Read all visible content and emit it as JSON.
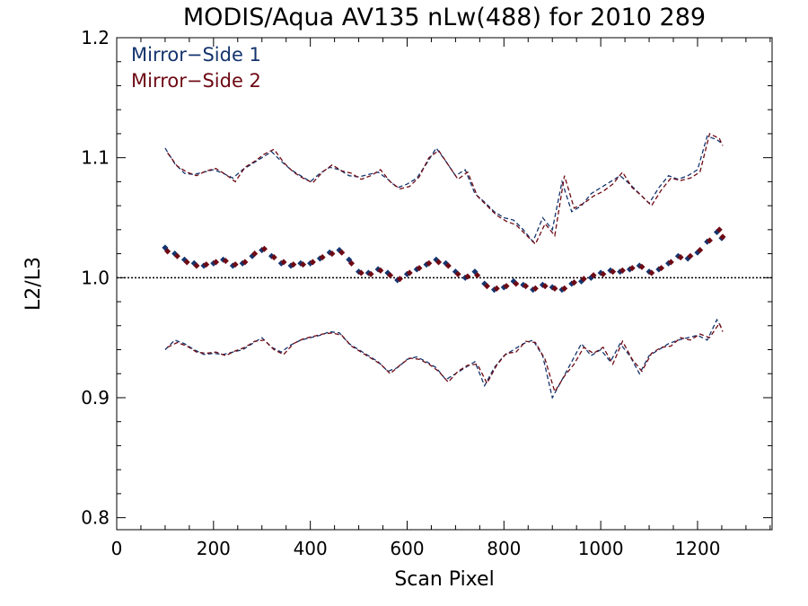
{
  "chart_data": {
    "type": "scatter",
    "title": "MODIS/Aqua AV135 nLw(488) for 2010 289",
    "xlabel": "Scan Pixel",
    "ylabel": "L2/L3",
    "xlim": [
      0,
      1354
    ],
    "ylim": [
      0.79,
      1.2
    ],
    "xticks": [
      0,
      200,
      400,
      600,
      800,
      1000,
      1200
    ],
    "yticks": [
      0.8,
      0.9,
      1.0,
      1.1,
      1.2
    ],
    "xtick_labels": [
      "0",
      "200",
      "400",
      "600",
      "800",
      "1000",
      "1200"
    ],
    "ytick_labels": [
      "0.8",
      "0.9",
      "1.0",
      "1.1",
      "1.2"
    ],
    "reference_line": 1.0,
    "legend_placement": "top-left",
    "grid": false,
    "series": [
      {
        "name": "Mirror−Side 1",
        "color": "#14346e",
        "x": [
          100,
          120,
          140,
          160,
          180,
          200,
          220,
          240,
          260,
          280,
          300,
          320,
          340,
          360,
          380,
          400,
          420,
          440,
          460,
          480,
          500,
          520,
          540,
          560,
          580,
          600,
          620,
          640,
          660,
          680,
          700,
          720,
          740,
          760,
          780,
          800,
          820,
          840,
          860,
          880,
          900,
          920,
          940,
          960,
          980,
          1000,
          1020,
          1040,
          1060,
          1080,
          1100,
          1120,
          1140,
          1160,
          1180,
          1200,
          1220,
          1240,
          1250
        ],
        "y": [
          1.025,
          1.02,
          1.015,
          1.012,
          1.01,
          1.012,
          1.015,
          1.01,
          1.012,
          1.018,
          1.023,
          1.018,
          1.012,
          1.01,
          1.012,
          1.012,
          1.016,
          1.021,
          1.023,
          1.015,
          1.005,
          1.004,
          1.007,
          1.004,
          0.998,
          1.003,
          1.007,
          1.011,
          1.015,
          1.012,
          1.005,
          1.0,
          1.005,
          0.995,
          0.99,
          0.992,
          0.997,
          0.994,
          0.99,
          0.994,
          0.992,
          0.99,
          0.995,
          0.997,
          1.0,
          1.004,
          1.006,
          1.005,
          1.007,
          1.01,
          1.005,
          1.007,
          1.012,
          1.018,
          1.016,
          1.021,
          1.03,
          1.038,
          1.033
        ]
      },
      {
        "name": "Mirror−Side 2",
        "color": "#6e0a14",
        "x": [
          105,
          125,
          145,
          165,
          185,
          205,
          225,
          245,
          265,
          285,
          305,
          325,
          345,
          365,
          385,
          405,
          425,
          445,
          465,
          485,
          505,
          525,
          545,
          565,
          585,
          605,
          625,
          645,
          665,
          685,
          705,
          725,
          745,
          765,
          785,
          805,
          825,
          845,
          865,
          885,
          905,
          925,
          945,
          965,
          985,
          1005,
          1025,
          1045,
          1065,
          1085,
          1105,
          1125,
          1145,
          1165,
          1185,
          1205,
          1225,
          1245,
          1252
        ],
        "y": [
          1.022,
          1.018,
          1.013,
          1.01,
          1.011,
          1.013,
          1.014,
          1.011,
          1.013,
          1.02,
          1.024,
          1.017,
          1.013,
          1.011,
          1.011,
          1.013,
          1.017,
          1.02,
          1.021,
          1.012,
          1.004,
          1.003,
          1.006,
          1.002,
          0.999,
          1.004,
          1.008,
          1.012,
          1.013,
          1.01,
          1.003,
          1.001,
          1.002,
          0.993,
          0.991,
          0.993,
          0.995,
          0.993,
          0.991,
          0.993,
          0.991,
          0.991,
          0.996,
          0.999,
          1.002,
          1.003,
          1.005,
          1.006,
          1.008,
          1.009,
          1.004,
          1.008,
          1.013,
          1.017,
          1.018,
          1.023,
          1.031,
          1.04,
          1.034
        ]
      },
      {
        "name": "",
        "color": "#14346e",
        "x": [
          100,
          120,
          140,
          160,
          180,
          200,
          220,
          240,
          260,
          280,
          300,
          320,
          340,
          360,
          380,
          400,
          420,
          440,
          460,
          480,
          500,
          520,
          540,
          560,
          580,
          600,
          620,
          640,
          660,
          680,
          700,
          720,
          740,
          760,
          780,
          800,
          820,
          840,
          860,
          880,
          900,
          920,
          940,
          960,
          980,
          1000,
          1020,
          1040,
          1060,
          1080,
          1100,
          1120,
          1140,
          1160,
          1180,
          1200,
          1220,
          1240,
          1250
        ],
        "y": [
          1.108,
          1.095,
          1.087,
          1.086,
          1.088,
          1.09,
          1.087,
          1.083,
          1.09,
          1.095,
          1.1,
          1.105,
          1.097,
          1.09,
          1.085,
          1.08,
          1.087,
          1.092,
          1.09,
          1.085,
          1.084,
          1.086,
          1.088,
          1.082,
          1.075,
          1.078,
          1.083,
          1.095,
          1.108,
          1.097,
          1.085,
          1.09,
          1.07,
          1.063,
          1.055,
          1.05,
          1.048,
          1.04,
          1.03,
          1.05,
          1.04,
          1.08,
          1.055,
          1.06,
          1.07,
          1.075,
          1.08,
          1.085,
          1.078,
          1.07,
          1.062,
          1.075,
          1.085,
          1.082,
          1.085,
          1.09,
          1.118,
          1.115,
          1.112
        ]
      },
      {
        "name": "",
        "color": "#6e0a14",
        "x": [
          105,
          125,
          145,
          165,
          185,
          205,
          225,
          245,
          265,
          285,
          305,
          325,
          345,
          365,
          385,
          405,
          425,
          445,
          465,
          485,
          505,
          525,
          545,
          565,
          585,
          605,
          625,
          645,
          665,
          685,
          705,
          725,
          745,
          765,
          785,
          805,
          825,
          845,
          865,
          885,
          905,
          925,
          945,
          965,
          985,
          1005,
          1025,
          1045,
          1065,
          1085,
          1105,
          1125,
          1145,
          1165,
          1185,
          1205,
          1225,
          1245,
          1252
        ],
        "y": [
          1.104,
          1.093,
          1.088,
          1.085,
          1.089,
          1.091,
          1.086,
          1.08,
          1.092,
          1.097,
          1.103,
          1.107,
          1.096,
          1.088,
          1.083,
          1.079,
          1.088,
          1.094,
          1.089,
          1.087,
          1.082,
          1.085,
          1.09,
          1.08,
          1.074,
          1.076,
          1.084,
          1.1,
          1.106,
          1.094,
          1.082,
          1.088,
          1.068,
          1.06,
          1.052,
          1.047,
          1.044,
          1.036,
          1.028,
          1.045,
          1.035,
          1.085,
          1.058,
          1.062,
          1.068,
          1.072,
          1.078,
          1.088,
          1.075,
          1.068,
          1.06,
          1.073,
          1.083,
          1.081,
          1.083,
          1.088,
          1.12,
          1.116,
          1.11
        ]
      },
      {
        "name": "",
        "color": "#14346e",
        "x": [
          100,
          120,
          140,
          160,
          180,
          200,
          220,
          240,
          260,
          280,
          300,
          320,
          340,
          360,
          380,
          400,
          420,
          440,
          460,
          480,
          500,
          520,
          540,
          560,
          580,
          600,
          620,
          640,
          660,
          680,
          700,
          720,
          740,
          760,
          780,
          800,
          820,
          840,
          860,
          880,
          900,
          920,
          940,
          960,
          980,
          1000,
          1020,
          1040,
          1060,
          1080,
          1100,
          1120,
          1140,
          1160,
          1180,
          1200,
          1220,
          1240,
          1250
        ],
        "y": [
          0.94,
          0.948,
          0.945,
          0.94,
          0.936,
          0.937,
          0.936,
          0.938,
          0.94,
          0.945,
          0.95,
          0.942,
          0.938,
          0.944,
          0.948,
          0.95,
          0.952,
          0.955,
          0.954,
          0.945,
          0.94,
          0.935,
          0.93,
          0.922,
          0.925,
          0.932,
          0.934,
          0.93,
          0.925,
          0.915,
          0.92,
          0.925,
          0.93,
          0.91,
          0.925,
          0.935,
          0.94,
          0.945,
          0.948,
          0.935,
          0.9,
          0.915,
          0.93,
          0.945,
          0.935,
          0.94,
          0.93,
          0.945,
          0.935,
          0.92,
          0.935,
          0.94,
          0.945,
          0.948,
          0.95,
          0.952,
          0.948,
          0.965,
          0.958
        ]
      },
      {
        "name": "",
        "color": "#6e0a14",
        "x": [
          105,
          125,
          145,
          165,
          185,
          205,
          225,
          245,
          265,
          285,
          305,
          325,
          345,
          365,
          385,
          405,
          425,
          445,
          465,
          485,
          505,
          525,
          545,
          565,
          585,
          605,
          625,
          645,
          665,
          685,
          705,
          725,
          745,
          765,
          785,
          805,
          825,
          845,
          865,
          885,
          905,
          925,
          945,
          965,
          985,
          1005,
          1025,
          1045,
          1065,
          1085,
          1105,
          1125,
          1145,
          1165,
          1185,
          1205,
          1225,
          1245,
          1252
        ],
        "y": [
          0.942,
          0.946,
          0.943,
          0.938,
          0.937,
          0.938,
          0.935,
          0.939,
          0.942,
          0.947,
          0.948,
          0.94,
          0.936,
          0.945,
          0.949,
          0.951,
          0.953,
          0.954,
          0.952,
          0.943,
          0.938,
          0.933,
          0.928,
          0.92,
          0.927,
          0.933,
          0.932,
          0.928,
          0.922,
          0.913,
          0.922,
          0.927,
          0.928,
          0.912,
          0.927,
          0.937,
          0.938,
          0.947,
          0.946,
          0.932,
          0.905,
          0.918,
          0.928,
          0.942,
          0.937,
          0.942,
          0.928,
          0.947,
          0.932,
          0.922,
          0.937,
          0.942,
          0.943,
          0.95,
          0.948,
          0.953,
          0.95,
          0.962,
          0.955
        ]
      }
    ]
  }
}
